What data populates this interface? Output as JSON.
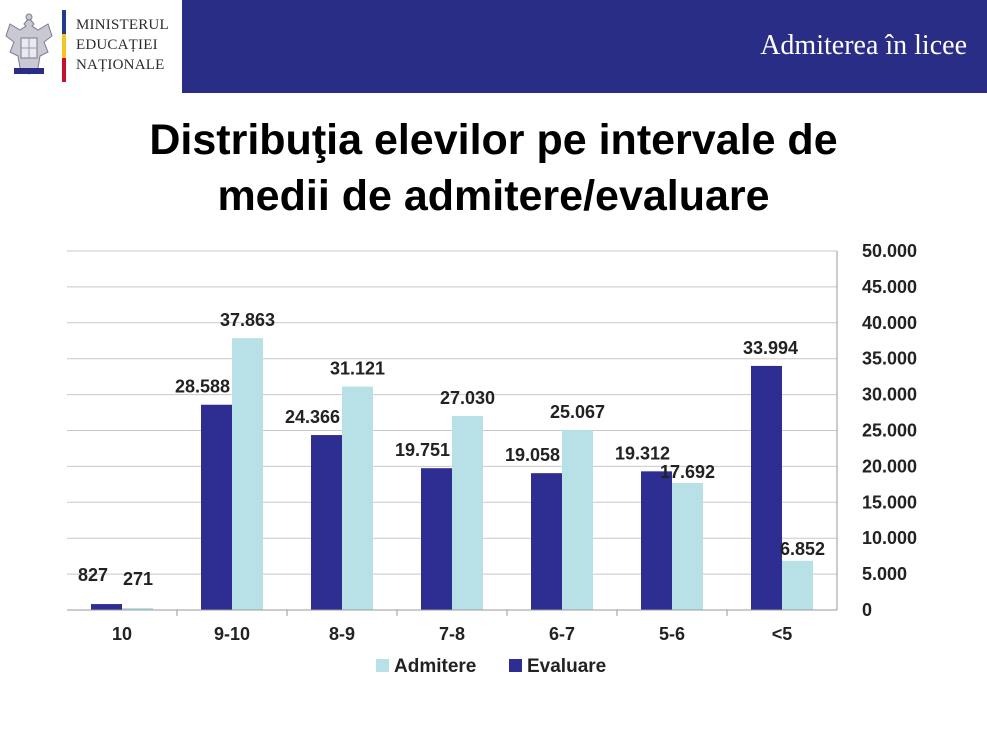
{
  "header": {
    "ministry_lines": [
      "MINISTERUL",
      "EDUCAȚIEI",
      "NAȚIONALE"
    ],
    "title": "Admiterea în licee",
    "crest_icon": "romanian-coat-of-arms-icon",
    "tricolor": [
      "#1f3d8f",
      "#f3c623",
      "#c8102e"
    ],
    "background": "#2a2d86"
  },
  "title_lines": [
    "Distribuţia elevilor pe intervale de",
    "medii de admitere/evaluare"
  ],
  "chart_data": {
    "type": "bar",
    "categories": [
      "10",
      "9-10",
      "8-9",
      "7-8",
      "6-7",
      "5-6",
      "<5"
    ],
    "series": [
      {
        "name": "Evaluare",
        "color": "#2e2d92",
        "values": [
          827,
          28588,
          24366,
          19751,
          19058,
          19312,
          33994
        ],
        "labels": [
          "827",
          "28.588",
          "24.366",
          "19.751",
          "19.058",
          "19.312",
          "33.994"
        ]
      },
      {
        "name": "Admitere",
        "color": "#b7e1e6",
        "values": [
          271,
          37863,
          31121,
          27030,
          25067,
          17692,
          6852
        ],
        "labels": [
          "271",
          "37.863",
          "31.121",
          "27.030",
          "25.067",
          "17.692",
          "6.852"
        ]
      }
    ],
    "ylim": [
      0,
      50000
    ],
    "yticks": [
      "0",
      "5.000",
      "10.000",
      "15.000",
      "20.000",
      "25.000",
      "30.000",
      "35.000",
      "40.000",
      "45.000",
      "50.000"
    ],
    "yaxis_side": "right",
    "grid": true,
    "legend": [
      "Admitere",
      "Evaluare"
    ],
    "legend_position": "bottom"
  }
}
